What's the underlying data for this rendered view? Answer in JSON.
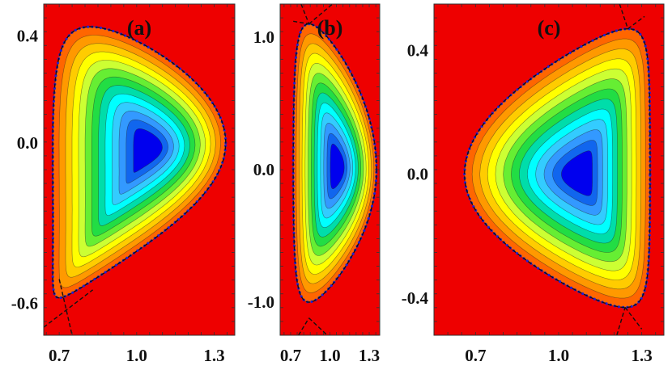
{
  "chart_data": [
    {
      "type": "contour",
      "panel_label": "(a)",
      "xlim": [
        0.64,
        1.38
      ],
      "ylim": [
        -0.72,
        0.52
      ],
      "xticks": [
        0.7,
        1.0,
        1.3
      ],
      "xtick_labels": [
        "0.7",
        "1.0",
        "1.3"
      ],
      "yticks": [
        -0.6,
        0.0,
        0.4
      ],
      "ytick_labels": [
        "-0.6",
        "0.0",
        "0.4"
      ],
      "magnetic_axis": [
        1.05,
        -0.02
      ],
      "boundary": {
        "r_min": 0.675,
        "r_max": 1.345,
        "z_top": 0.435,
        "z_bottom": -0.58,
        "r_top": 0.82,
        "r_bottom": 0.7
      },
      "x_point_lines": [
        {
          "from": [
            0.64,
            -0.69
          ],
          "to": [
            0.83,
            -0.55
          ]
        },
        {
          "from": [
            0.7,
            -0.51
          ],
          "to": [
            0.75,
            -0.72
          ]
        }
      ],
      "contour_levels": 14,
      "colors": [
        "#ee0000",
        "#ff6600",
        "#ff9900",
        "#ffcc00",
        "#ffff00",
        "#ccff33",
        "#66ee33",
        "#22dd44",
        "#00ddaa",
        "#00ffff",
        "#33ccff",
        "#3399ff",
        "#1166ee",
        "#0000ee"
      ]
    },
    {
      "type": "contour",
      "panel_label": "(b)",
      "xlim": [
        0.62,
        1.38
      ],
      "ylim": [
        -1.25,
        1.25
      ],
      "xticks": [
        0.7,
        1.0,
        1.3
      ],
      "xtick_labels": [
        "0.7",
        "1.0",
        "1.3"
      ],
      "yticks": [
        -1.0,
        0.0,
        1.0
      ],
      "ytick_labels": [
        "-1.0",
        "0.0",
        "1.0"
      ],
      "magnetic_axis": [
        1.06,
        0.02
      ],
      "boundary": {
        "r_min": 0.72,
        "r_max": 1.355,
        "z_top": 1.1,
        "z_bottom": -1.0,
        "r_top": 0.84,
        "r_bottom": 0.84
      },
      "x_point_lines": [
        {
          "from": [
            0.78,
            1.25
          ],
          "to": [
            0.84,
            1.1
          ]
        },
        {
          "from": [
            0.84,
            1.1
          ],
          "to": [
            1.02,
            1.25
          ]
        },
        {
          "from": [
            0.72,
            1.12
          ],
          "to": [
            0.84,
            1.1
          ]
        },
        {
          "from": [
            0.76,
            -1.25
          ],
          "to": [
            0.84,
            -1.12
          ]
        },
        {
          "from": [
            0.84,
            -1.12
          ],
          "to": [
            0.98,
            -1.25
          ]
        }
      ],
      "contour_levels": 14,
      "colors": [
        "#ee0000",
        "#ff6600",
        "#ff9900",
        "#ffcc00",
        "#ffff00",
        "#ccff33",
        "#66ee33",
        "#22dd44",
        "#00ddaa",
        "#00ffff",
        "#33ccff",
        "#3399ff",
        "#1166ee",
        "#0000ee"
      ]
    },
    {
      "type": "contour",
      "panel_label": "(c)",
      "xlim": [
        0.55,
        1.38
      ],
      "ylim": [
        -0.52,
        0.55
      ],
      "xticks": [
        0.7,
        1.0,
        1.3
      ],
      "xtick_labels": [
        "0.7",
        "1.0",
        "1.3"
      ],
      "yticks": [
        -0.4,
        0.0,
        0.4
      ],
      "ytick_labels": [
        "-0.4",
        "0.0",
        "0.4"
      ],
      "magnetic_axis": [
        1.08,
        0.0
      ],
      "boundary": {
        "r_min": 0.66,
        "r_max": 1.33,
        "z_top": 0.47,
        "z_bottom": -0.43,
        "r_top": 1.25,
        "r_bottom": 1.24
      },
      "x_point_lines": [
        {
          "from": [
            1.22,
            0.55
          ],
          "to": [
            1.25,
            0.47
          ]
        },
        {
          "from": [
            1.25,
            0.47
          ],
          "to": [
            1.31,
            0.51
          ]
        },
        {
          "from": [
            1.21,
            -0.52
          ],
          "to": [
            1.24,
            -0.43
          ]
        },
        {
          "from": [
            1.24,
            -0.43
          ],
          "to": [
            1.3,
            -0.5
          ]
        }
      ],
      "contour_levels": 14,
      "colors": [
        "#ee0000",
        "#ff6600",
        "#ff9900",
        "#ffcc00",
        "#ffff00",
        "#ccff33",
        "#66ee33",
        "#22dd44",
        "#00ddaa",
        "#00ffff",
        "#33ccff",
        "#3399ff",
        "#1166ee",
        "#0000ee"
      ]
    }
  ]
}
